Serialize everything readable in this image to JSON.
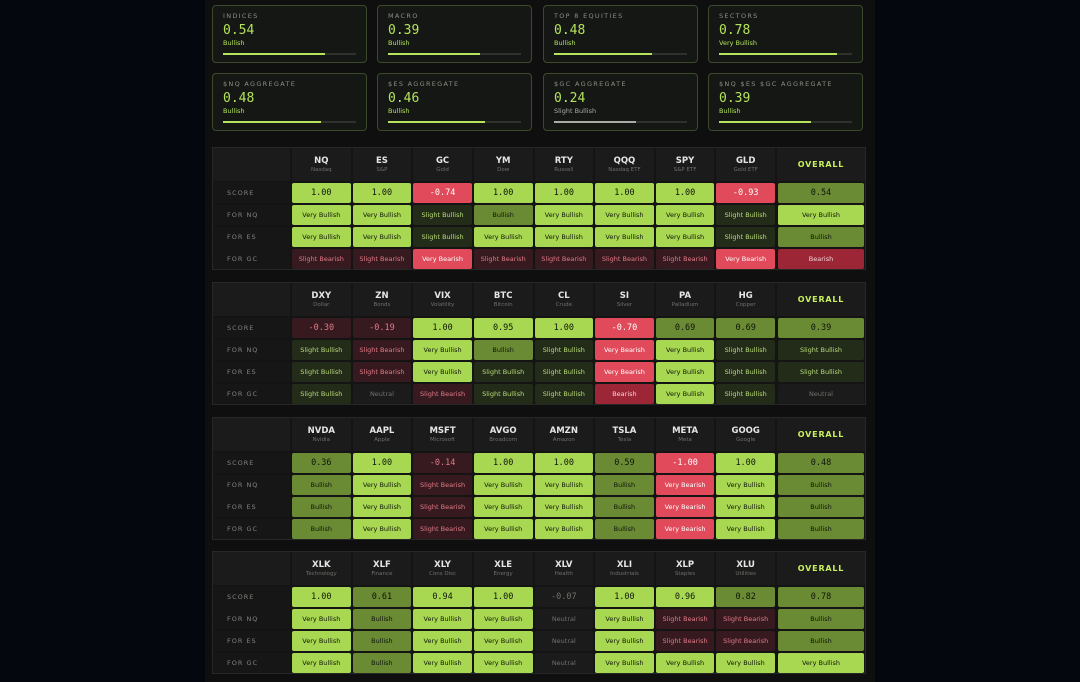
{
  "cards": [
    {
      "title": "INDICES",
      "score": 0.54,
      "label": "Bullish"
    },
    {
      "title": "MACRO",
      "score": 0.39,
      "label": "Bullish"
    },
    {
      "title": "TOP 8 EQUITIES",
      "score": 0.48,
      "label": "Bullish"
    },
    {
      "title": "SECTORS",
      "score": 0.78,
      "label": "Very Bullish"
    },
    {
      "title": "$NQ AGGREGATE",
      "score": 0.48,
      "label": "Bullish"
    },
    {
      "title": "$ES AGGREGATE",
      "score": 0.46,
      "label": "Bullish"
    },
    {
      "title": "$GC AGGREGATE",
      "score": 0.24,
      "label": "Slight Bullish"
    },
    {
      "title": "$NQ $ES $GC AGGREGATE",
      "score": 0.39,
      "label": "Bullish"
    }
  ],
  "tables": [
    {
      "columns": [
        {
          "ticker": "NQ",
          "name": "Nasdaq"
        },
        {
          "ticker": "ES",
          "name": "S&P"
        },
        {
          "ticker": "GC",
          "name": "Gold"
        },
        {
          "ticker": "YM",
          "name": "Dow"
        },
        {
          "ticker": "RTY",
          "name": "Russell"
        },
        {
          "ticker": "QQQ",
          "name": "Nasdaq ETF"
        },
        {
          "ticker": "SPY",
          "name": "S&P ETF"
        },
        {
          "ticker": "GLD",
          "name": "Gold ETF"
        }
      ],
      "overall": "OVERALL",
      "rows": [
        {
          "label": "SCORE",
          "cells": [
            "1.00",
            "1.00",
            "-0.74",
            "1.00",
            "1.00",
            "1.00",
            "1.00",
            "-0.93",
            "0.54"
          ]
        },
        {
          "label": "FOR NQ",
          "cells": [
            "Very Bullish",
            "Very Bullish",
            "Slight Bullish",
            "Bullish",
            "Very Bullish",
            "Very Bullish",
            "Very Bullish",
            "Slight Bullish",
            "Very Bullish"
          ]
        },
        {
          "label": "FOR ES",
          "cells": [
            "Very Bullish",
            "Very Bullish",
            "Slight Bullish",
            "Very Bullish",
            "Very Bullish",
            "Very Bullish",
            "Very Bullish",
            "Slight Bullish",
            "Bullish"
          ]
        },
        {
          "label": "FOR GC",
          "cells": [
            "Slight Bearish",
            "Slight Bearish",
            "Very Bearish",
            "Slight Bearish",
            "Slight Bearish",
            "Slight Bearish",
            "Slight Bearish",
            "Very Bearish",
            "Bearish"
          ]
        }
      ]
    },
    {
      "columns": [
        {
          "ticker": "DXY",
          "name": "Dollar"
        },
        {
          "ticker": "ZN",
          "name": "Bonds"
        },
        {
          "ticker": "VIX",
          "name": "Volatility"
        },
        {
          "ticker": "BTC",
          "name": "Bitcoin"
        },
        {
          "ticker": "CL",
          "name": "Crude"
        },
        {
          "ticker": "SI",
          "name": "Silver"
        },
        {
          "ticker": "PA",
          "name": "Palladium"
        },
        {
          "ticker": "HG",
          "name": "Copper"
        }
      ],
      "overall": "OVERALL",
      "rows": [
        {
          "label": "SCORE",
          "cells": [
            "-0.30",
            "-0.19",
            "1.00",
            "0.95",
            "1.00",
            "-0.70",
            "0.69",
            "0.69",
            "0.39"
          ]
        },
        {
          "label": "FOR NQ",
          "cells": [
            "Slight Bullish",
            "Slight Bearish",
            "Very Bullish",
            "Bullish",
            "Slight Bullish",
            "Very Bearish",
            "Very Bullish",
            "Slight Bullish",
            "Slight Bullish"
          ]
        },
        {
          "label": "FOR ES",
          "cells": [
            "Slight Bullish",
            "Slight Bearish",
            "Very Bullish",
            "Slight Bullish",
            "Slight Bullish",
            "Very Bearish",
            "Very Bullish",
            "Slight Bullish",
            "Slight Bullish"
          ]
        },
        {
          "label": "FOR GC",
          "cells": [
            "Slight Bullish",
            "Neutral",
            "Slight Bearish",
            "Slight Bullish",
            "Slight Bullish",
            "Bearish",
            "Very Bullish",
            "Slight Bullish",
            "Neutral"
          ]
        }
      ]
    },
    {
      "columns": [
        {
          "ticker": "NVDA",
          "name": "Nvidia"
        },
        {
          "ticker": "AAPL",
          "name": "Apple"
        },
        {
          "ticker": "MSFT",
          "name": "Microsoft"
        },
        {
          "ticker": "AVGO",
          "name": "Broadcom"
        },
        {
          "ticker": "AMZN",
          "name": "Amazon"
        },
        {
          "ticker": "TSLA",
          "name": "Tesla"
        },
        {
          "ticker": "META",
          "name": "Meta"
        },
        {
          "ticker": "GOOG",
          "name": "Google"
        }
      ],
      "overall": "OVERALL",
      "rows": [
        {
          "label": "SCORE",
          "cells": [
            "0.36",
            "1.00",
            "-0.14",
            "1.00",
            "1.00",
            "0.59",
            "-1.00",
            "1.00",
            "0.48"
          ]
        },
        {
          "label": "FOR NQ",
          "cells": [
            "Bullish",
            "Very Bullish",
            "Slight Bearish",
            "Very Bullish",
            "Very Bullish",
            "Bullish",
            "Very Bearish",
            "Very Bullish",
            "Bullish"
          ]
        },
        {
          "label": "FOR ES",
          "cells": [
            "Bullish",
            "Very Bullish",
            "Slight Bearish",
            "Very Bullish",
            "Very Bullish",
            "Bullish",
            "Very Bearish",
            "Very Bullish",
            "Bullish"
          ]
        },
        {
          "label": "FOR GC",
          "cells": [
            "Bullish",
            "Very Bullish",
            "Slight Bearish",
            "Very Bullish",
            "Very Bullish",
            "Bullish",
            "Very Bearish",
            "Very Bullish",
            "Bullish"
          ]
        }
      ]
    },
    {
      "columns": [
        {
          "ticker": "XLK",
          "name": "Technology"
        },
        {
          "ticker": "XLF",
          "name": "Finance"
        },
        {
          "ticker": "XLY",
          "name": "Cons Disc"
        },
        {
          "ticker": "XLE",
          "name": "Energy"
        },
        {
          "ticker": "XLV",
          "name": "Health"
        },
        {
          "ticker": "XLI",
          "name": "Industrials"
        },
        {
          "ticker": "XLP",
          "name": "Staples"
        },
        {
          "ticker": "XLU",
          "name": "Utilities"
        }
      ],
      "overall": "OVERALL",
      "rows": [
        {
          "label": "SCORE",
          "cells": [
            "1.00",
            "0.61",
            "0.94",
            "1.00",
            "-0.07",
            "1.00",
            "0.96",
            "0.82",
            "0.78"
          ]
        },
        {
          "label": "FOR NQ",
          "cells": [
            "Very Bullish",
            "Bullish",
            "Very Bullish",
            "Very Bullish",
            "Neutral",
            "Very Bullish",
            "Slight Bearish",
            "Slight Bearish",
            "Bullish"
          ]
        },
        {
          "label": "FOR ES",
          "cells": [
            "Very Bullish",
            "Bullish",
            "Very Bullish",
            "Very Bullish",
            "Neutral",
            "Very Bullish",
            "Slight Bearish",
            "Slight Bearish",
            "Bullish"
          ]
        },
        {
          "label": "FOR GC",
          "cells": [
            "Very Bullish",
            "Bullish",
            "Very Bullish",
            "Very Bullish",
            "Neutral",
            "Very Bullish",
            "Very Bullish",
            "Very Bullish",
            "Very Bullish"
          ]
        }
      ]
    }
  ]
}
